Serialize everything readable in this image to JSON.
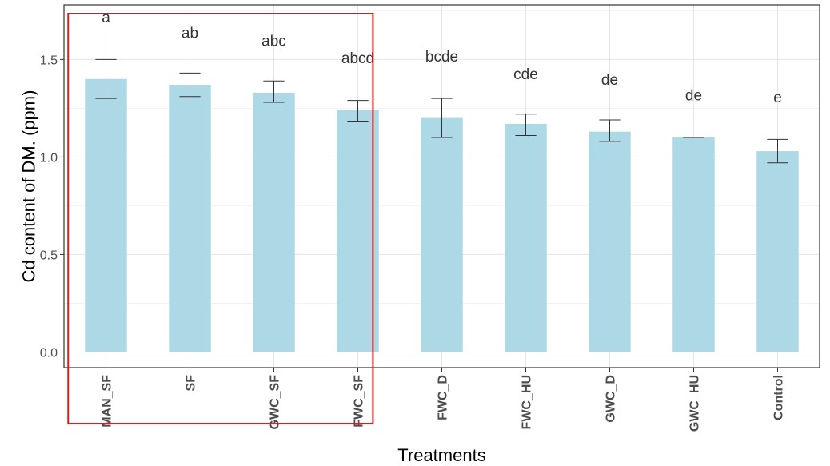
{
  "chart_data": {
    "type": "bar",
    "xlabel": "Treatments",
    "ylabel": "Cd content of DM. (ppm)",
    "ylim": [
      -0.08,
      1.78
    ],
    "yticks": [
      "0.0",
      "0.5",
      "1.0",
      "1.5"
    ],
    "grid": true,
    "categories": [
      "MAN_SF",
      "SF",
      "GWC_SF",
      "FWC_SF",
      "FWC_D",
      "FWC_HU",
      "GWC_D",
      "GWC_HU",
      "Control"
    ],
    "values": [
      1.4,
      1.37,
      1.33,
      1.24,
      1.2,
      1.17,
      1.13,
      1.1,
      1.03
    ],
    "error_low": [
      1.3,
      1.31,
      1.28,
      1.18,
      1.1,
      1.11,
      1.08,
      1.1,
      0.97
    ],
    "error_high": [
      1.5,
      1.43,
      1.39,
      1.29,
      1.3,
      1.22,
      1.19,
      1.1,
      1.09
    ],
    "significance": [
      "a",
      "ab",
      "abc",
      "abcd",
      "bcde",
      "cde",
      "de",
      "de",
      "e"
    ],
    "significance_y": [
      1.69,
      1.61,
      1.57,
      1.48,
      1.49,
      1.4,
      1.37,
      1.29,
      1.28
    ],
    "bar_color": "#add8e6",
    "highlight": {
      "color": "#e31a1c",
      "categories": [
        "MAN_SF",
        "SF",
        "GWC_SF",
        "FWC_SF"
      ]
    }
  }
}
